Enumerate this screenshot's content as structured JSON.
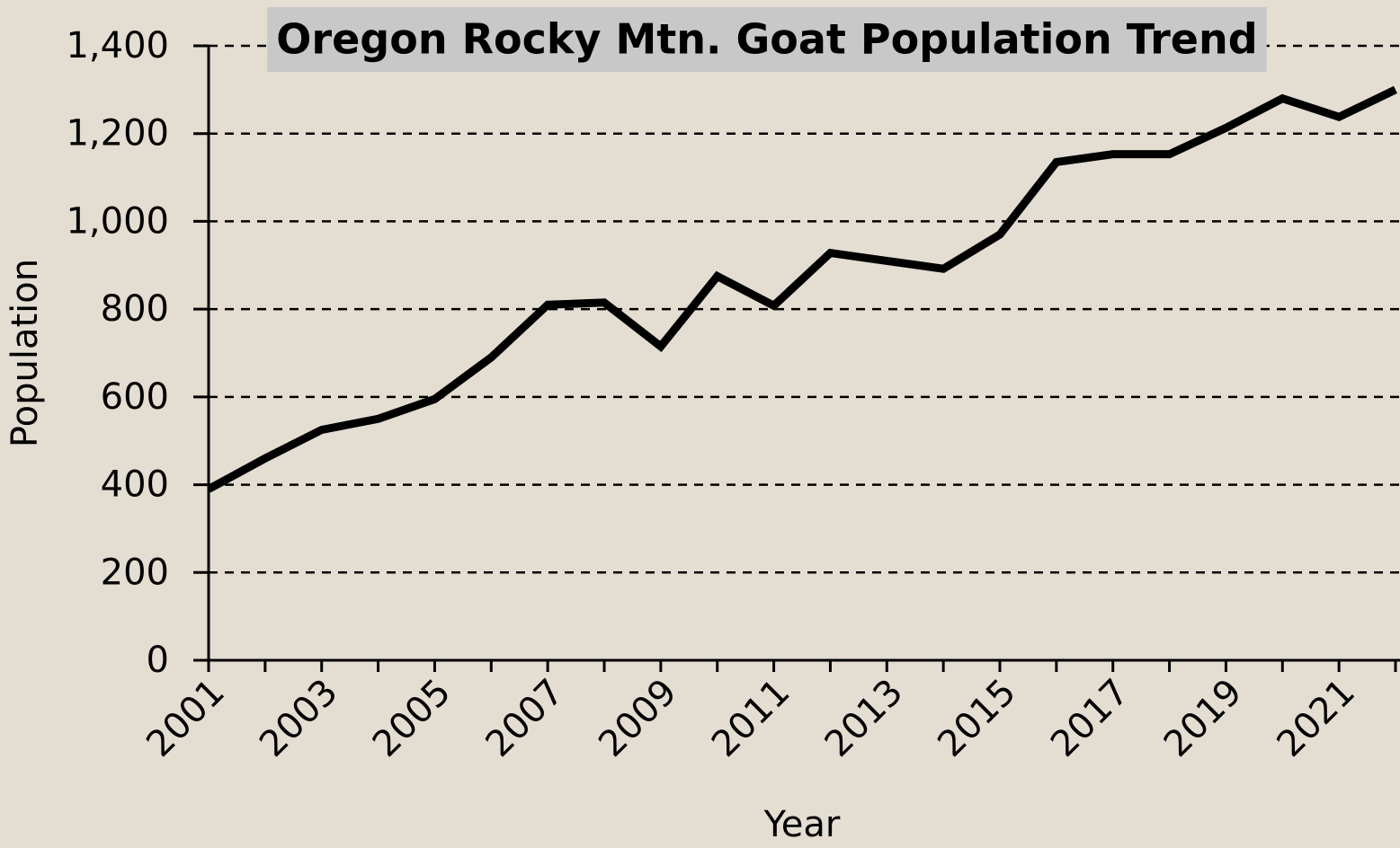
{
  "chart_data": {
    "type": "line",
    "title": "Oregon Rocky Mtn. Goat Population Trend",
    "x_label": "Year",
    "y_label": "Population",
    "x": [
      2001,
      2002,
      2003,
      2004,
      2005,
      2006,
      2007,
      2008,
      2009,
      2010,
      2011,
      2012,
      2013,
      2014,
      2015,
      2016,
      2017,
      2018,
      2019,
      2020,
      2021,
      2022
    ],
    "series": [
      {
        "name": "Population",
        "color": "#000000",
        "values": [
          390,
          460,
          525,
          550,
          595,
          690,
          810,
          815,
          715,
          875,
          808,
          928,
          910,
          892,
          970,
          1135,
          1153,
          1153,
          1213,
          1280,
          1238,
          1300
        ]
      }
    ],
    "xlim": [
      2001,
      2022
    ],
    "xticks": [
      2001,
      2003,
      2005,
      2007,
      2009,
      2011,
      2013,
      2015,
      2017,
      2019,
      2021
    ],
    "ylim": [
      0,
      1400
    ],
    "yticks": [
      0,
      200,
      400,
      600,
      800,
      {
        "value": 1000,
        "label": "1,000"
      },
      {
        "value": 1200,
        "label": "1,200"
      },
      {
        "value": 1400,
        "label": "1,400"
      }
    ],
    "grid": true
  }
}
